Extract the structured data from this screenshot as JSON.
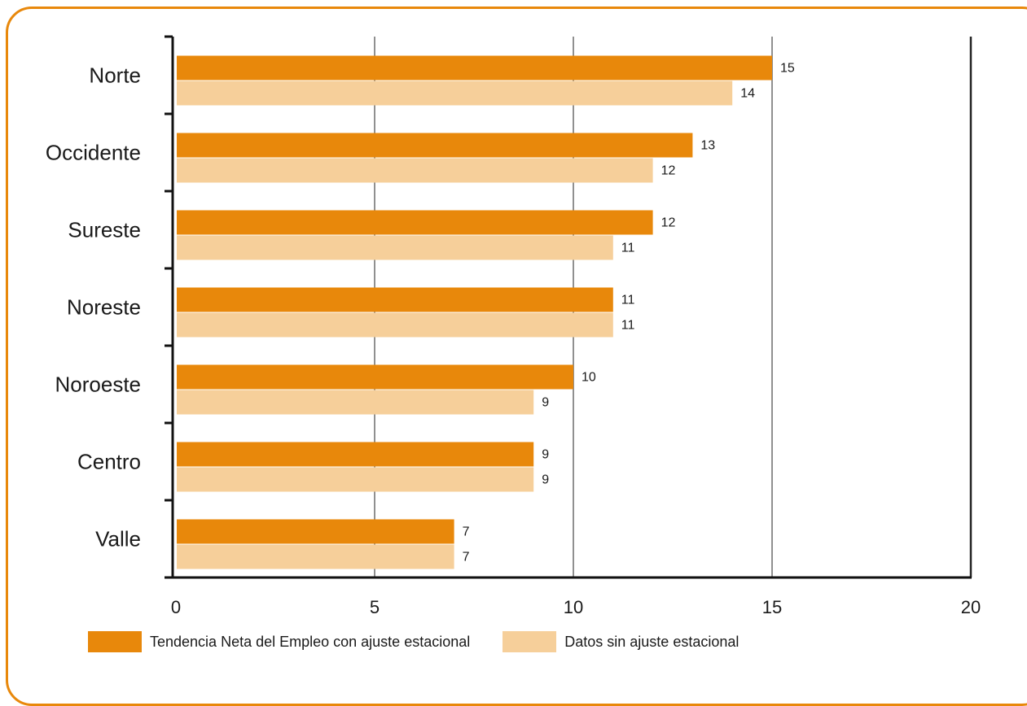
{
  "chart_data": {
    "type": "bar",
    "orientation": "horizontal",
    "categories": [
      "Norte",
      "Occidente",
      "Sureste",
      "Noreste",
      "Noroeste",
      "Centro",
      "Valle"
    ],
    "series": [
      {
        "name": "Tendencia Neta del Empleo con ajuste estacional",
        "values": [
          15,
          13,
          12,
          11,
          10,
          9,
          7
        ],
        "color": "#e8880b"
      },
      {
        "name": "Datos sin ajuste estacional",
        "values": [
          14,
          12,
          11,
          11,
          9,
          9,
          7
        ],
        "color": "#f6cf9a"
      }
    ],
    "x_ticks": [
      "0",
      "5",
      "10",
      "15",
      "20"
    ],
    "xlim": [
      0,
      20
    ],
    "grid": true,
    "legend_position": "bottom",
    "data_labels": true
  }
}
